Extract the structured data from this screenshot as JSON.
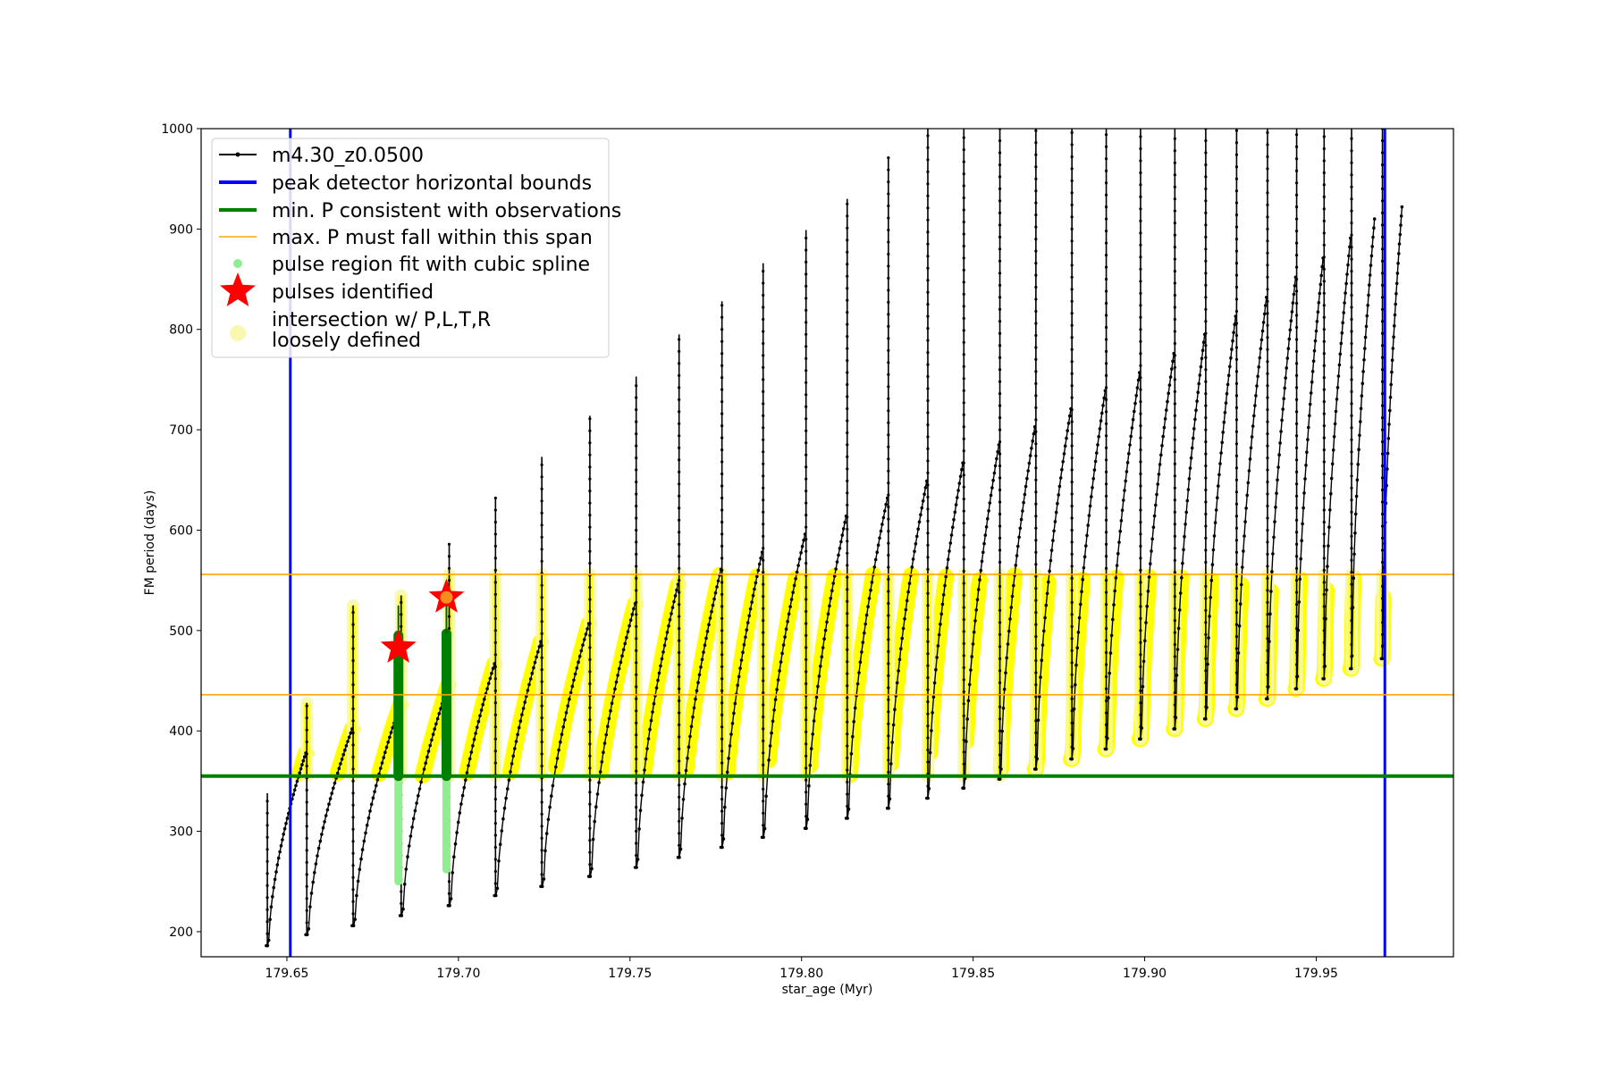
{
  "chart_data": {
    "type": "line",
    "xlabel": "star_age (Myr)",
    "ylabel": "FM period (days)",
    "xlim": [
      179.625,
      179.99
    ],
    "ylim": [
      175,
      1000
    ],
    "x_ticks": [
      179.65,
      179.7,
      179.75,
      179.8,
      179.85,
      179.9,
      179.95
    ],
    "x_tick_labels": [
      "179.65",
      "179.70",
      "179.75",
      "179.80",
      "179.85",
      "179.90",
      "179.95"
    ],
    "y_ticks": [
      200,
      300,
      400,
      500,
      600,
      700,
      800,
      900,
      1000
    ],
    "y_tick_labels": [
      "200",
      "300",
      "400",
      "500",
      "600",
      "700",
      "800",
      "900",
      "1000"
    ],
    "grid": false,
    "legend_position": "top-left",
    "legend": [
      {
        "label": "m4.30_z0.0500",
        "marker": "black-line-dot"
      },
      {
        "label": "peak detector horizontal bounds",
        "marker": "blue-line"
      },
      {
        "label": "min. P consistent with observations",
        "marker": "green-line"
      },
      {
        "label": "max. P must fall within this span",
        "marker": "orange-line"
      },
      {
        "label": "pulse region fit with cubic spline",
        "marker": "lightgreen-dot"
      },
      {
        "label": "pulses identified",
        "marker": "red-star"
      },
      {
        "label": "intersection w/ P,L,T,R",
        "label2": "loosely defined",
        "marker": "pale-yellow-dot"
      }
    ],
    "vertical_bounds": [
      179.651,
      179.97
    ],
    "min_period_line": 355,
    "max_period_span": [
      436,
      556
    ],
    "pulses_identified": [
      {
        "x": 179.6825,
        "y": 483
      },
      {
        "x": 179.6965,
        "y": 533
      }
    ],
    "pulse_cycles": [
      {
        "start": 179.644,
        "end": 179.6555,
        "min": 186,
        "max": 378,
        "spike": 338
      },
      {
        "start": 179.6555,
        "end": 179.669,
        "min": 197,
        "max": 402,
        "spike": 428
      },
      {
        "start": 179.669,
        "end": 179.683,
        "min": 206,
        "max": 426,
        "spike": 525
      },
      {
        "start": 179.683,
        "end": 179.697,
        "min": 216,
        "max": 446,
        "spike": 535
      },
      {
        "start": 179.697,
        "end": 179.7105,
        "min": 226,
        "max": 467,
        "spike": 587
      },
      {
        "start": 179.7105,
        "end": 179.724,
        "min": 236,
        "max": 489,
        "spike": 632
      },
      {
        "start": 179.724,
        "end": 179.738,
        "min": 245,
        "max": 507,
        "spike": 673
      },
      {
        "start": 179.738,
        "end": 179.7515,
        "min": 255,
        "max": 527,
        "spike": 714
      },
      {
        "start": 179.7515,
        "end": 179.764,
        "min": 264,
        "max": 546,
        "spike": 753
      },
      {
        "start": 179.764,
        "end": 179.7765,
        "min": 274,
        "max": 561,
        "spike": 795
      },
      {
        "start": 179.7765,
        "end": 179.7885,
        "min": 284,
        "max": 578,
        "spike": 828
      },
      {
        "start": 179.7885,
        "end": 179.801,
        "min": 294,
        "max": 596,
        "spike": 866
      },
      {
        "start": 179.801,
        "end": 179.813,
        "min": 303,
        "max": 614,
        "spike": 899
      },
      {
        "start": 179.813,
        "end": 179.825,
        "min": 313,
        "max": 632,
        "spike": 930
      },
      {
        "start": 179.825,
        "end": 179.8365,
        "min": 323,
        "max": 649,
        "spike": 971
      },
      {
        "start": 179.8365,
        "end": 179.847,
        "min": 333,
        "max": 667,
        "spike": 1000
      },
      {
        "start": 179.847,
        "end": 179.8575,
        "min": 343,
        "max": 685,
        "spike": 1000
      },
      {
        "start": 179.8575,
        "end": 179.868,
        "min": 352,
        "max": 703,
        "spike": 1000
      },
      {
        "start": 179.868,
        "end": 179.8785,
        "min": 362,
        "max": 721,
        "spike": 1000
      },
      {
        "start": 179.8785,
        "end": 179.8885,
        "min": 372,
        "max": 739,
        "spike": 1000
      },
      {
        "start": 179.8885,
        "end": 179.8985,
        "min": 382,
        "max": 757,
        "spike": 1000
      },
      {
        "start": 179.8985,
        "end": 179.9085,
        "min": 392,
        "max": 776,
        "spike": 1000
      },
      {
        "start": 179.9085,
        "end": 179.9175,
        "min": 402,
        "max": 795,
        "spike": 1000
      },
      {
        "start": 179.9175,
        "end": 179.9265,
        "min": 412,
        "max": 813,
        "spike": 1000
      },
      {
        "start": 179.9265,
        "end": 179.9355,
        "min": 422,
        "max": 832,
        "spike": 1000
      },
      {
        "start": 179.9355,
        "end": 179.944,
        "min": 432,
        "max": 852,
        "spike": 1000
      },
      {
        "start": 179.944,
        "end": 179.952,
        "min": 442,
        "max": 871,
        "spike": 1000
      },
      {
        "start": 179.952,
        "end": 179.96,
        "min": 452,
        "max": 891,
        "spike": 1000
      },
      {
        "start": 179.96,
        "end": 179.967,
        "min": 462,
        "max": 910,
        "spike": 1000
      },
      {
        "start": 179.969,
        "end": 179.975,
        "min": 472,
        "max": 922,
        "spike": 1000
      }
    ],
    "colors": {
      "series": "#000000",
      "bounds": "#0000ff",
      "min_period": "#008000",
      "max_period": "#ffa500",
      "spline": "#90ee90",
      "spline_dark": "#006400",
      "pulse_star": "#ff0000",
      "intersection": "#ffff00",
      "intersection_pale": "#f8f8b0"
    }
  }
}
